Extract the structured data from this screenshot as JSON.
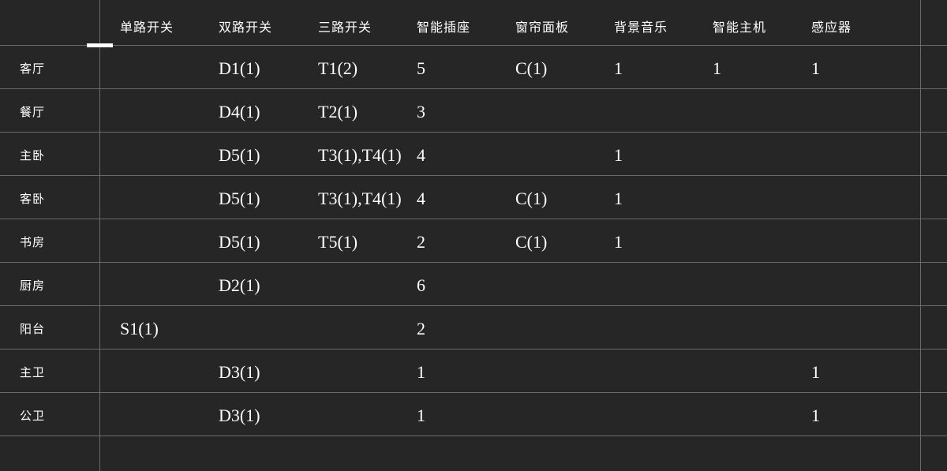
{
  "colors": {
    "background": "#262626",
    "grid_line": "#6a6a6a",
    "text": "#ffffff",
    "divider_handle": "#ffffff"
  },
  "table": {
    "corner": "",
    "headers": [
      "单路开关",
      "双路开关",
      "三路开关",
      "智能插座",
      "窗帘面板",
      "背景音乐",
      "智能主机",
      "感应器"
    ],
    "rows": [
      {
        "label": "客厅",
        "cells": [
          "",
          "D1(1)",
          "T1(2)",
          "5",
          "C(1)",
          "1",
          "1",
          "1"
        ]
      },
      {
        "label": "餐厅",
        "cells": [
          "",
          "D4(1)",
          "T2(1)",
          "3",
          "",
          "",
          "",
          ""
        ]
      },
      {
        "label": "主卧",
        "cells": [
          "",
          "D5(1)",
          "T3(1),T4(1)",
          "4",
          "",
          "1",
          "",
          ""
        ]
      },
      {
        "label": "客卧",
        "cells": [
          "",
          "D5(1)",
          "T3(1),T4(1)",
          "4",
          "C(1)",
          "1",
          "",
          ""
        ]
      },
      {
        "label": "书房",
        "cells": [
          "",
          "D5(1)",
          "T5(1)",
          "2",
          "C(1)",
          "1",
          "",
          ""
        ]
      },
      {
        "label": "厨房",
        "cells": [
          "",
          "D2(1)",
          "",
          "6",
          "",
          "",
          "",
          ""
        ]
      },
      {
        "label": "阳台",
        "cells": [
          "S1(1)",
          "",
          "",
          "2",
          "",
          "",
          "",
          ""
        ]
      },
      {
        "label": "主卫",
        "cells": [
          "",
          "D3(1)",
          "",
          "1",
          "",
          "",
          "",
          "1"
        ]
      },
      {
        "label": "公卫",
        "cells": [
          "",
          "D3(1)",
          "",
          "1",
          "",
          "",
          "",
          "1"
        ]
      }
    ]
  }
}
